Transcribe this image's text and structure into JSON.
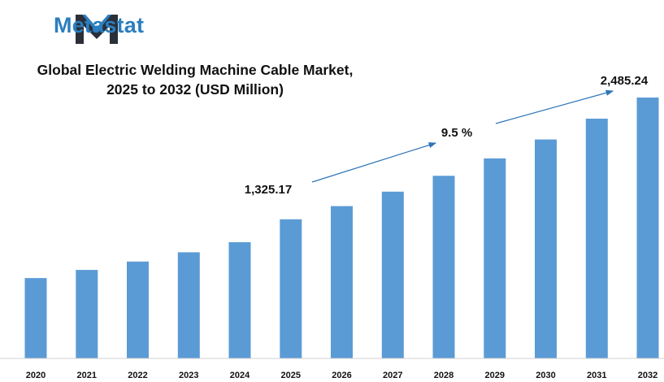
{
  "brand": {
    "name": "Metastat",
    "logo_icon": "metastat-m-logo-icon",
    "colors": {
      "dark": "#2b2f38",
      "accent": "#2a7fc1"
    }
  },
  "chart_data": {
    "type": "bar",
    "title_line1": "Global Electric Welding Machine Cable Market,",
    "title_line2": "2025 to 2032 (USD Million)",
    "xlabel": "",
    "ylabel": "",
    "categories": [
      "2020",
      "2021",
      "2022",
      "2023",
      "2024",
      "2025",
      "2026",
      "2027",
      "2028",
      "2029",
      "2030",
      "2031",
      "2032"
    ],
    "values": [
      766,
      843,
      923,
      1011,
      1107,
      1325.17,
      1451,
      1589,
      1740,
      1905,
      2086,
      2284,
      2485.24
    ],
    "ylim": [
      0,
      2500
    ],
    "bar_color": "#5b9bd5",
    "grid": false,
    "legend": "none",
    "annotations": {
      "start_value": "1,325.17",
      "end_value": "2,485.24",
      "cagr": "9.5 %"
    }
  }
}
